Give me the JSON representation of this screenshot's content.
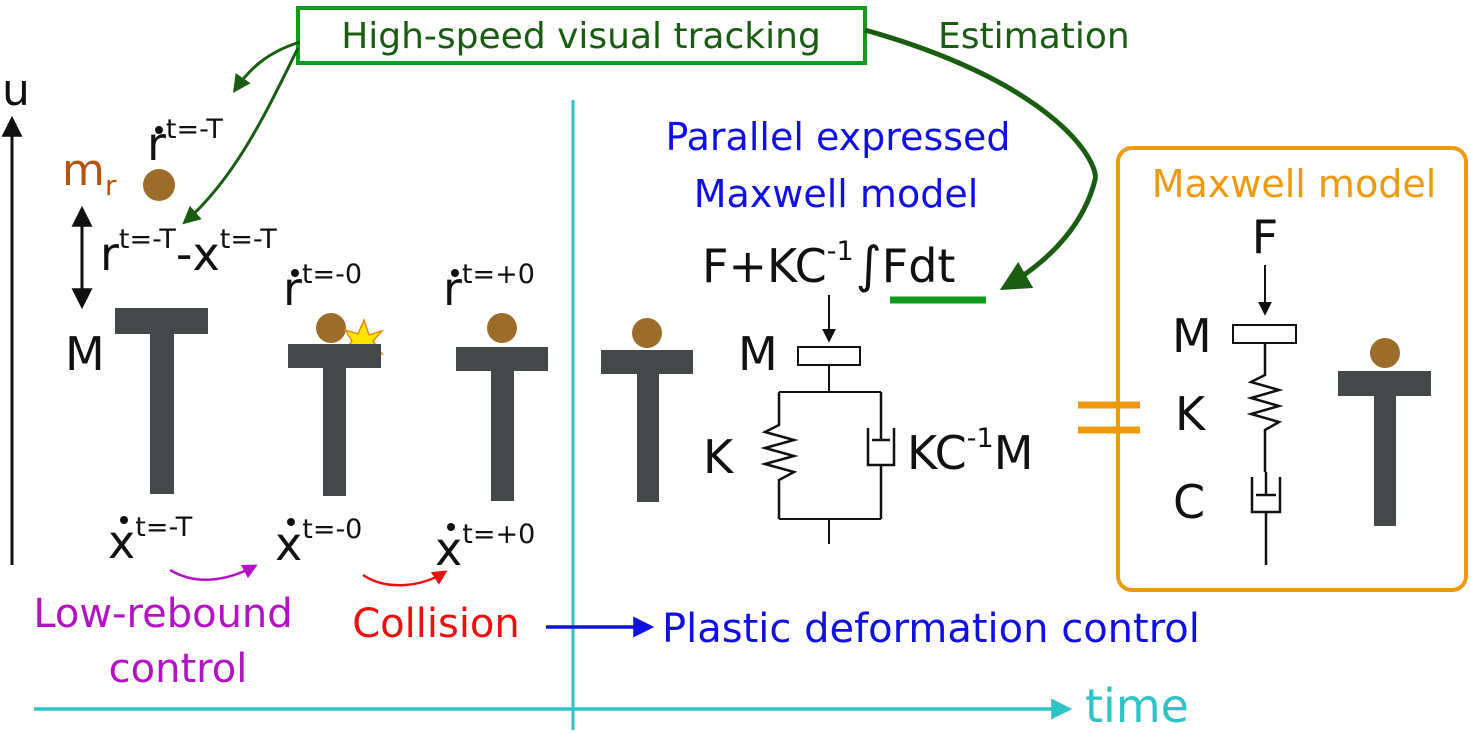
{
  "colors": {
    "green": "#1a5c12",
    "blue": "#1010e6",
    "orange": "#ee9a10",
    "cyan": "#2ec3c6",
    "magenta": "#b412c4",
    "red": "#ee1010",
    "ball": "#9c6c2a",
    "platform": "#454848",
    "spark": "#ffe600",
    "line_green": "#139a19"
  },
  "tracking": {
    "label": "High-speed visual tracking",
    "estimation": "Estimation"
  },
  "axes": {
    "u": "u",
    "time": "time"
  },
  "left": {
    "mass_r": "m",
    "mass_r_sub": "r",
    "M": "M",
    "r_prev": {
      "base": "r",
      "sup": "t=-T"
    },
    "diff": {
      "r": "r",
      "r_sup": "t=-T",
      "minus": "-",
      "x": "x",
      "x_sup": "t=-T"
    },
    "r_m0": {
      "base": "r",
      "sup": "t=-0"
    },
    "r_p0": {
      "base": "r",
      "sup": "t=+0"
    },
    "x_prev": {
      "base": "x",
      "sup": "t=-T"
    },
    "x_m0": {
      "base": "x",
      "sup": "t=-0"
    },
    "x_p0": {
      "base": "x",
      "sup": "t=+0"
    },
    "low_rebound": [
      "Low-rebound",
      "control"
    ],
    "collision": "Collision"
  },
  "parallel": {
    "title": [
      "Parallel expressed",
      "Maxwell model"
    ],
    "force_a": "F+KC",
    "force_sup": "-1",
    "force_b": "Fdt",
    "integral": "∫",
    "M": "M",
    "K": "K",
    "damper_a": "KC",
    "damper_sup": "-1",
    "damper_b": "M"
  },
  "plastic": "Plastic deformation control",
  "maxwell": {
    "title": "Maxwell model",
    "F": "F",
    "M": "M",
    "K": "K",
    "C": "C"
  }
}
